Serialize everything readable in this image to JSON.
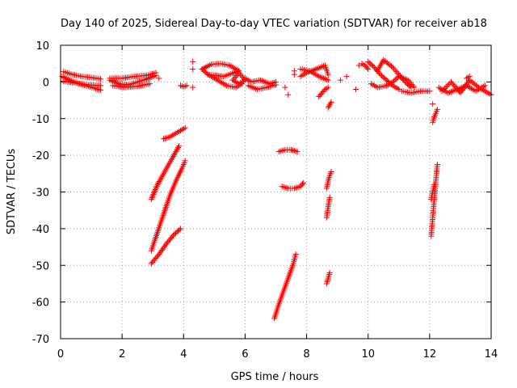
{
  "chart_data": {
    "type": "scatter",
    "title": "Day 140 of 2025, Sidereal Day-to-day VTEC variation (SDTVAR) for receiver ab18",
    "xlabel": "GPS time / hours",
    "ylabel": "SDTVAR / TECUs",
    "xlim": [
      0,
      14
    ],
    "ylim": [
      -70,
      10
    ],
    "x_ticks": [
      0,
      2,
      4,
      6,
      8,
      10,
      12,
      14
    ],
    "y_ticks": [
      -70,
      -60,
      -50,
      -40,
      -30,
      -20,
      -10,
      0,
      10
    ],
    "grid": true,
    "marker": "plus",
    "marker_color": "#ff0000",
    "segments": [
      {
        "x": [
          0.05,
          0.3,
          0.6,
          0.9,
          1.2,
          1.3
        ],
        "y": [
          1.5,
          0.5,
          -0.5,
          -1.2,
          -2.0,
          -2.2
        ]
      },
      {
        "x": [
          0.1,
          0.4,
          0.7,
          1.0,
          1.3
        ],
        "y": [
          2.8,
          2.0,
          1.5,
          1.2,
          0.8
        ]
      },
      {
        "x": [
          0.1,
          0.5,
          0.9,
          1.3
        ],
        "y": [
          0.2,
          -0.3,
          -0.8,
          -1.0
        ]
      },
      {
        "x": [
          1.6,
          1.9,
          2.2,
          2.5,
          2.8,
          3.1
        ],
        "y": [
          0.5,
          -0.5,
          -0.8,
          0.0,
          0.8,
          1.8
        ]
      },
      {
        "x": [
          1.6,
          2.0,
          2.4,
          2.8,
          3.1
        ],
        "y": [
          1.0,
          1.0,
          1.5,
          1.8,
          2.5
        ]
      },
      {
        "x": [
          1.7,
          2.1,
          2.5,
          2.9
        ],
        "y": [
          -1.0,
          -1.5,
          -1.2,
          -0.5
        ]
      },
      {
        "x": [
          3.2
        ],
        "y": [
          1.0
        ]
      },
      {
        "x": [
          3.9,
          4.0,
          4.1
        ],
        "y": [
          -1.0,
          -1.3,
          -1.0
        ]
      },
      {
        "x": [
          4.3
        ],
        "y": [
          5.5
        ]
      },
      {
        "x": [
          4.3
        ],
        "y": [
          3.5
        ]
      },
      {
        "x": [
          4.3
        ],
        "y": [
          -1.5
        ]
      },
      {
        "x": [
          4.6,
          4.9,
          5.2,
          5.5,
          5.8,
          5.3,
          4.8,
          4.6
        ],
        "y": [
          3.5,
          4.8,
          5.0,
          4.5,
          3.0,
          1.5,
          2.0,
          3.5
        ]
      },
      {
        "x": [
          4.8,
          5.1,
          5.4,
          5.7,
          5.9
        ],
        "y": [
          2.0,
          0.5,
          -1.0,
          -1.5,
          -0.5
        ]
      },
      {
        "x": [
          5.6,
          5.8,
          6.0,
          5.8,
          5.6
        ],
        "y": [
          0.5,
          2.5,
          0.5,
          -0.5,
          0.5
        ]
      },
      {
        "x": [
          6.0,
          6.2,
          6.5,
          6.8,
          7.0
        ],
        "y": [
          1.0,
          0.0,
          0.5,
          -0.5,
          0.0
        ]
      },
      {
        "x": [
          6.1,
          6.4,
          6.7,
          7.0
        ],
        "y": [
          -1.0,
          -2.0,
          -1.5,
          -0.8
        ]
      },
      {
        "x": [
          7.3
        ],
        "y": [
          -1.5
        ]
      },
      {
        "x": [
          7.4
        ],
        "y": [
          -3.5
        ]
      },
      {
        "x": [
          7.6
        ],
        "y": [
          3.0
        ]
      },
      {
        "x": [
          7.6
        ],
        "y": [
          2.0
        ]
      },
      {
        "x": [
          7.8,
          8.0,
          8.3,
          8.6,
          8.7
        ],
        "y": [
          1.5,
          2.5,
          3.5,
          4.5,
          2.0
        ]
      },
      {
        "x": [
          7.8,
          8.1,
          8.4,
          8.7
        ],
        "y": [
          3.5,
          3.0,
          1.5,
          0.5
        ]
      },
      {
        "x": [
          8.4,
          8.5,
          8.6,
          8.7
        ],
        "y": [
          -4.0,
          -3.0,
          -2.0,
          -1.5
        ]
      },
      {
        "x": [
          8.7,
          8.8
        ],
        "y": [
          -7.0,
          -5.5
        ]
      },
      {
        "x": [
          9.1
        ],
        "y": [
          0.5
        ]
      },
      {
        "x": [
          9.3
        ],
        "y": [
          1.5
        ]
      },
      {
        "x": [
          9.6
        ],
        "y": [
          -2.0
        ]
      },
      {
        "x": [
          9.7
        ],
        "y": [
          4.5
        ]
      },
      {
        "x": [
          9.8,
          9.9,
          10.0
        ],
        "y": [
          5.0,
          4.5,
          3.5
        ]
      },
      {
        "x": [
          10.0,
          10.2,
          10.4,
          10.6,
          10.8,
          11.0
        ],
        "y": [
          5.5,
          4.0,
          2.0,
          0.5,
          -1.0,
          -2.0
        ]
      },
      {
        "x": [
          10.1,
          10.3,
          10.6,
          10.8,
          11.0,
          11.3,
          11.5
        ],
        "y": [
          -0.5,
          -1.5,
          -1.0,
          0.0,
          1.5,
          0.5,
          -1.5
        ]
      },
      {
        "x": [
          10.3,
          10.5,
          10.8,
          11.0,
          11.2,
          11.4
        ],
        "y": [
          3.0,
          6.0,
          4.0,
          2.0,
          0.0,
          -1.5
        ]
      },
      {
        "x": [
          11.1,
          11.4,
          11.7,
          12.0
        ],
        "y": [
          -2.5,
          -3.0,
          -2.5,
          -2.5
        ]
      },
      {
        "x": [
          12.1,
          12.15,
          12.2,
          12.25
        ],
        "y": [
          -11.0,
          -9.5,
          -8.5,
          -7.5
        ]
      },
      {
        "x": [
          12.1
        ],
        "y": [
          -6.0
        ]
      },
      {
        "x": [
          12.3,
          12.6,
          12.9,
          13.2,
          13.5,
          13.8
        ],
        "y": [
          -1.5,
          -3.0,
          -2.0,
          -1.0,
          -2.5,
          -1.0
        ]
      },
      {
        "x": [
          12.4,
          12.7,
          13.0,
          13.3,
          13.6
        ],
        "y": [
          -2.5,
          0.0,
          -3.0,
          0.5,
          -1.5
        ]
      },
      {
        "x": [
          13.2,
          13.3
        ],
        "y": [
          1.0,
          1.5
        ]
      },
      {
        "x": [
          13.7,
          13.9,
          14.0
        ],
        "y": [
          -2.0,
          -3.0,
          -3.5
        ]
      },
      {
        "x": [
          2.95,
          3.2,
          3.45,
          3.7,
          3.9
        ],
        "y": [
          -49.5,
          -47.0,
          -44.0,
          -41.5,
          -40.0
        ]
      },
      {
        "x": [
          2.95,
          3.15,
          3.35,
          3.55,
          3.75,
          3.95,
          4.05
        ],
        "y": [
          -46.0,
          -41.0,
          -36.0,
          -31.0,
          -27.0,
          -23.5,
          -21.5
        ]
      },
      {
        "x": [
          2.95,
          3.15,
          3.35,
          3.55,
          3.75,
          3.85
        ],
        "y": [
          -32.0,
          -28.0,
          -25.0,
          -22.0,
          -19.0,
          -17.5
        ]
      },
      {
        "x": [
          3.35,
          3.55,
          3.75,
          3.95,
          4.05
        ],
        "y": [
          -15.5,
          -15.0,
          -14.0,
          -13.0,
          -12.5
        ]
      },
      {
        "x": [
          6.95,
          7.1,
          7.25,
          7.4,
          7.55,
          7.65
        ],
        "y": [
          -64.5,
          -60.5,
          -57.0,
          -53.5,
          -50.0,
          -47.0
        ]
      },
      {
        "x": [
          7.1,
          7.3,
          7.5,
          7.7
        ],
        "y": [
          -19.0,
          -18.5,
          -18.5,
          -19.0
        ]
      },
      {
        "x": [
          7.2,
          7.4,
          7.6,
          7.8,
          7.9
        ],
        "y": [
          -28.5,
          -29.0,
          -29.0,
          -28.5,
          -27.5
        ]
      },
      {
        "x": [
          8.65,
          8.7,
          8.75,
          8.8
        ],
        "y": [
          -29.0,
          -27.0,
          -25.5,
          -24.5
        ]
      },
      {
        "x": [
          8.65,
          8.7,
          8.75
        ],
        "y": [
          -37.0,
          -34.0,
          -31.5
        ]
      },
      {
        "x": [
          8.65,
          8.7,
          8.75
        ],
        "y": [
          -55.0,
          -53.5,
          -52.0
        ]
      },
      {
        "x": [
          12.05,
          12.1,
          12.15,
          12.2,
          12.25
        ],
        "y": [
          -42.0,
          -37.0,
          -32.0,
          -27.0,
          -22.5
        ]
      },
      {
        "x": [
          12.05,
          12.1,
          12.15
        ],
        "y": [
          -32.0,
          -30.0,
          -28.0
        ]
      }
    ]
  }
}
